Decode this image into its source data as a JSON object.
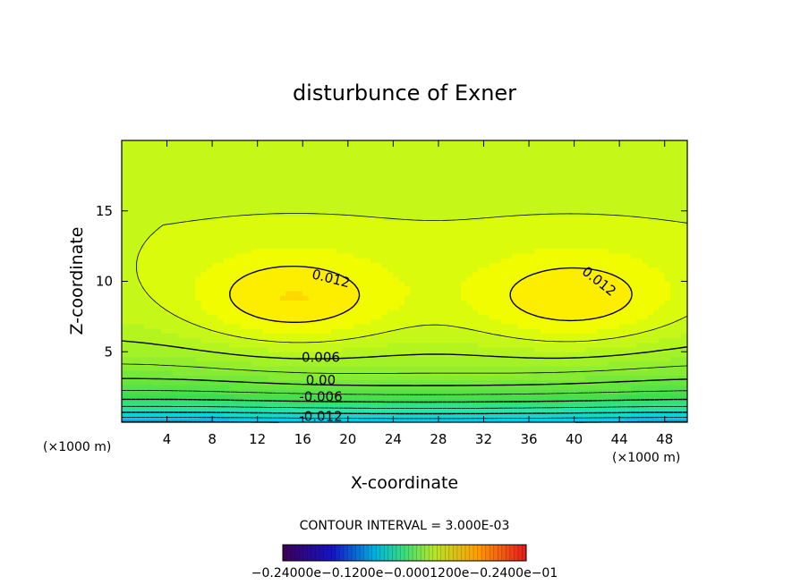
{
  "chart_data": {
    "type": "contour",
    "title": "disturbunce of Exner",
    "xlabel": "X-coordinate",
    "ylabel": "Z-coordinate",
    "xunit": "(×1000 m)",
    "zunit": "(×1000 m)",
    "xlim": [
      0,
      50
    ],
    "ylim": [
      0,
      20
    ],
    "xticks": [
      4,
      8,
      12,
      16,
      20,
      24,
      28,
      32,
      36,
      40,
      44,
      48
    ],
    "yticks": [
      5,
      10,
      15
    ],
    "contour_interval_text": "CONTOUR INTERVAL = 3.000E-03",
    "contour_labels": [
      {
        "text": "0.012",
        "x": 18.5,
        "z": 10.2
      },
      {
        "text": "0.012",
        "x": 42.2,
        "z": 10.0
      },
      {
        "text": "0.006",
        "x": 17.6,
        "z": 4.6
      },
      {
        "text": "0.00",
        "x": 17.6,
        "z": 3.0
      },
      {
        "text": "-0.006",
        "x": 17.6,
        "z": 1.8
      },
      {
        "text": "-0.012",
        "x": 17.6,
        "z": 0.4
      }
    ],
    "colorbar_labels_text": "−0.24000e−0.1200e−0.0001200e−0.2400e−01",
    "colorbar_range": [
      -0.024,
      0.024
    ],
    "highs": [
      {
        "x": 15,
        "z": 8.5,
        "value": 0.0145
      },
      {
        "x": 40,
        "z": 8.5,
        "value": 0.0143
      }
    ],
    "surface_min": -0.018,
    "top_value": 0.009
  },
  "colors": {
    "low": "#22b8f0",
    "mid": "#9cef2c",
    "high": "#ffff00",
    "peak": "#ffc800"
  }
}
